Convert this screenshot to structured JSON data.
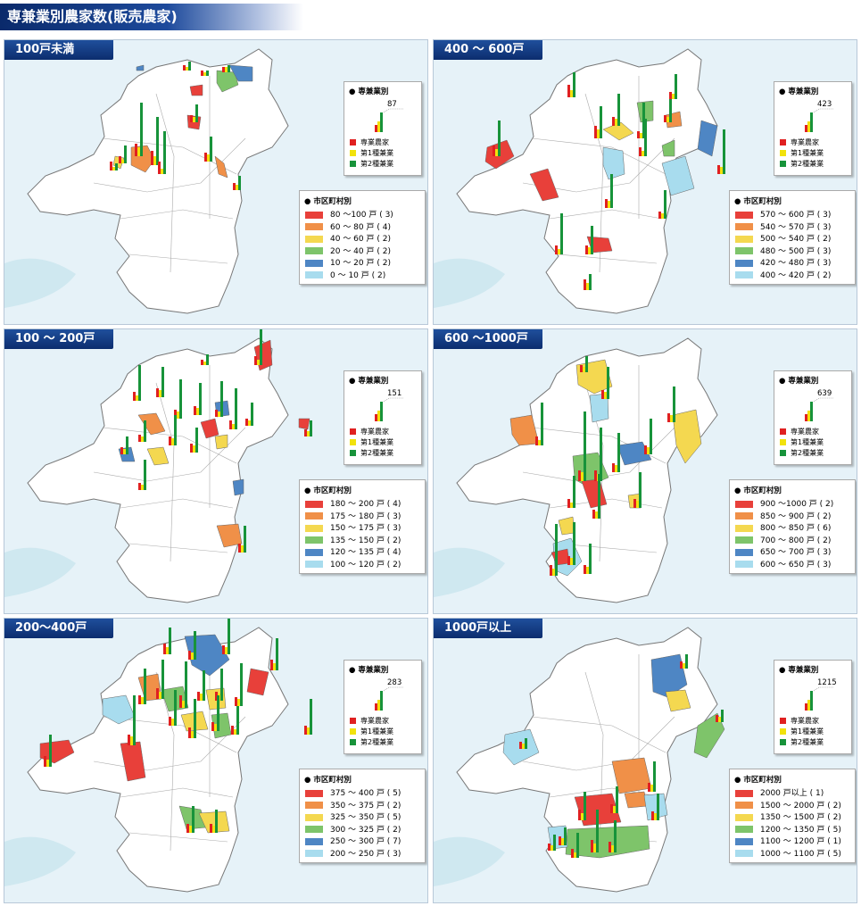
{
  "page_title": "専兼業別農家数(販売農家)",
  "legend_type_title": "専兼業別",
  "legend_mun_title": "市区町村別",
  "type_items": [
    {
      "label": "専業農家",
      "color": "#e02020"
    },
    {
      "label": "第1種兼業",
      "color": "#f2e20c"
    },
    {
      "label": "第2種兼業",
      "color": "#17933a"
    }
  ],
  "class_colors": [
    "#e8403a",
    "#f09048",
    "#f4d850",
    "#7ec46a",
    "#4e86c4",
    "#a8dcee"
  ],
  "panels": [
    {
      "tab": "100戸未満",
      "sample_value": "87",
      "classes": [
        "80 ～100 戸 ( 3)",
        "60 ～ 80 戸 ( 4)",
        "40 ～ 60 戸 ( 2)",
        "20 ～ 40 戸 ( 2)",
        "10 ～ 20 戸 ( 2)",
        "0 ～ 10 戸 ( 2)"
      ]
    },
    {
      "tab": "400 ～ 600戸",
      "sample_value": "423",
      "classes": [
        "570 ～ 600 戸 ( 3)",
        "540 ～ 570 戸 ( 3)",
        "500 ～ 540 戸 ( 2)",
        "480 ～ 500 戸 ( 3)",
        "420 ～ 480 戸 ( 3)",
        "400 ～ 420 戸 ( 2)"
      ]
    },
    {
      "tab": "100 ～ 200戸",
      "sample_value": "151",
      "classes": [
        "180 ～ 200 戸 ( 4)",
        "175 ～ 180 戸 ( 3)",
        "150 ～ 175 戸 ( 3)",
        "135 ～ 150 戸 ( 2)",
        "120 ～ 135 戸 ( 4)",
        "100 ～ 120 戸 ( 2)"
      ]
    },
    {
      "tab": "600 ～1000戸",
      "sample_value": "639",
      "classes": [
        "900 ～1000 戸 ( 2)",
        "850 ～ 900 戸 ( 2)",
        "800 ～ 850 戸 ( 6)",
        "700 ～ 800 戸 ( 2)",
        "650 ～ 700 戸 ( 3)",
        "600 ～ 650 戸 ( 3)"
      ]
    },
    {
      "tab": "200～400戸",
      "sample_value": "283",
      "classes": [
        "375 ～ 400 戸 ( 5)",
        "350 ～ 375 戸 ( 2)",
        "325 ～ 350 戸 ( 5)",
        "300 ～ 325 戸 ( 2)",
        "250 ～ 300 戸 ( 7)",
        "200 ～ 250 戸 ( 3)"
      ]
    },
    {
      "tab": "1000戸以上",
      "sample_value": "1215",
      "classes": [
        "2000 戸以上 ( 1)",
        "1500 ～ 2000 戸 ( 2)",
        "1350 ～ 1500 戸 ( 2)",
        "1200 ～ 1350 戸 ( 5)",
        "1100 ～ 1200 戸 ( 1)",
        "1000 ～ 1100 戸 ( 5)"
      ]
    }
  ]
}
